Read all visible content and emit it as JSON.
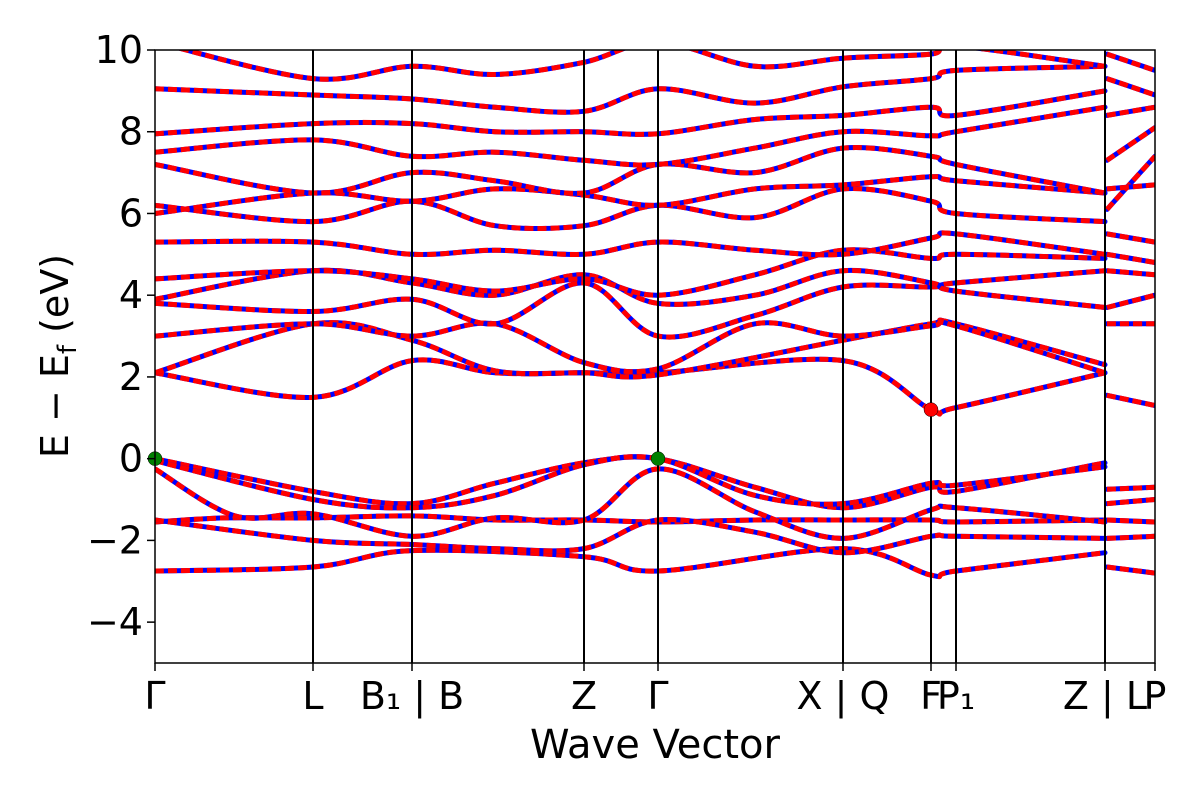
{
  "chart_data": {
    "type": "line",
    "title": "",
    "xlabel": "Wave Vector",
    "ylabel": "E − Ef (eV)",
    "ylabel_main": "E − E",
    "ylabel_sub": "f",
    "ylabel_unit": " (eV)",
    "ylim": [
      -5,
      10
    ],
    "yticks": [
      -4,
      -2,
      0,
      2,
      4,
      6,
      8,
      10
    ],
    "ytick_labels": [
      "−4",
      "−2",
      "0",
      "2",
      "4",
      "6",
      "8",
      "10"
    ],
    "xlim": [
      0,
      1
    ],
    "grid": false,
    "kpoints": [
      {
        "x": 0.0,
        "label": "Γ"
      },
      {
        "x": 0.158,
        "label": "L"
      },
      {
        "x": 0.257,
        "label": "B₁ | B"
      },
      {
        "x": 0.429,
        "label": "Z"
      },
      {
        "x": 0.503,
        "label": "Γ"
      },
      {
        "x": 0.688,
        "label": "X | Q"
      },
      {
        "x": 0.776,
        "label": "F"
      },
      {
        "x": 0.801,
        "label": "P₁"
      },
      {
        "x": 0.95,
        "label": "Z | L"
      },
      {
        "x": 1.0,
        "label": "P"
      }
    ],
    "series_colors": {
      "primary": "#ff0000",
      "overlay": "#0000ff"
    },
    "markers": [
      {
        "x": 0.0,
        "y": 0.0,
        "color": "#008000",
        "role": "valence band maximum"
      },
      {
        "x": 0.503,
        "y": 0.0,
        "color": "#008000",
        "role": "valence band maximum"
      },
      {
        "x": 0.776,
        "y": 1.2,
        "color": "#ff0000",
        "role": "conduction band minimum"
      }
    ],
    "bands": [
      {
        "x": [
          0,
          0.158,
          0.257,
          0.429,
          0.503,
          0.688,
          0.776,
          0.801,
          0.95
        ],
        "y": [
          -2.75,
          -2.65,
          -2.25,
          -2.4,
          -2.75,
          -2.2,
          -2.85,
          -2.75,
          -2.3
        ]
      },
      {
        "x": [
          0,
          0.07,
          0.158,
          0.257,
          0.34,
          0.429,
          0.503,
          0.6,
          0.688,
          0.776,
          0.801,
          0.95
        ],
        "y": [
          -1.55,
          -1.45,
          -1.45,
          -1.4,
          -1.5,
          -1.5,
          -1.55,
          -1.5,
          -1.5,
          -1.5,
          -1.55,
          -1.5
        ]
      },
      {
        "x": [
          0,
          0.158,
          0.257,
          0.34,
          0.429,
          0.503,
          0.6,
          0.688,
          0.776,
          0.801,
          0.95
        ],
        "y": [
          -1.5,
          -2.0,
          -2.1,
          -2.2,
          -2.2,
          -1.5,
          -1.8,
          -2.3,
          -1.9,
          -1.9,
          -1.95
        ]
      },
      {
        "x": [
          0,
          0.08,
          0.158,
          0.257,
          0.34,
          0.429,
          0.503,
          0.6,
          0.688,
          0.776,
          0.801,
          0.95
        ],
        "y": [
          -0.25,
          -1.4,
          -1.35,
          -1.9,
          -1.45,
          -1.5,
          -0.25,
          -1.3,
          -1.95,
          -1.25,
          -1.2,
          -1.55
        ]
      },
      {
        "x": [
          0,
          0.158,
          0.257,
          0.34,
          0.429,
          0.503,
          0.6,
          0.688,
          0.776,
          0.801,
          0.95
        ],
        "y": [
          0.0,
          -0.8,
          -1.1,
          -0.6,
          -0.1,
          0.0,
          -0.7,
          -1.2,
          -0.7,
          -0.8,
          -0.1
        ]
      },
      {
        "x": [
          0,
          0.158,
          0.257,
          0.34,
          0.429,
          0.503,
          0.6,
          0.688,
          0.776,
          0.801,
          0.95
        ],
        "y": [
          -0.05,
          -1.0,
          -1.2,
          -0.9,
          -0.15,
          0.0,
          -0.9,
          -1.1,
          -0.6,
          -0.65,
          -0.2
        ]
      },
      {
        "x": [
          0,
          0.158,
          0.257,
          0.34,
          0.429,
          0.503,
          0.688,
          0.776,
          0.801,
          0.95
        ],
        "y": [
          2.1,
          1.5,
          2.4,
          2.1,
          2.1,
          2.1,
          2.4,
          1.2,
          1.25,
          2.1
        ]
      },
      {
        "x": [
          0,
          0.158,
          0.257,
          0.34,
          0.429,
          0.503,
          0.688,
          0.776,
          0.801,
          0.95
        ],
        "y": [
          2.1,
          3.3,
          2.9,
          2.15,
          2.1,
          2.05,
          2.9,
          3.3,
          3.3,
          2.3
        ]
      },
      {
        "x": [
          0,
          0.158,
          0.257,
          0.34,
          0.429,
          0.503,
          0.6,
          0.688,
          0.776,
          0.801,
          0.95
        ],
        "y": [
          3.0,
          3.3,
          3.0,
          3.3,
          2.35,
          2.2,
          3.3,
          3.0,
          3.25,
          3.25,
          2.1
        ]
      },
      {
        "x": [
          0,
          0.158,
          0.257,
          0.34,
          0.429,
          0.503,
          0.6,
          0.688,
          0.776,
          0.801,
          0.95
        ],
        "y": [
          3.8,
          3.6,
          3.9,
          3.3,
          4.3,
          3.0,
          3.5,
          4.2,
          4.2,
          4.3,
          4.6
        ]
      },
      {
        "x": [
          0,
          0.158,
          0.257,
          0.34,
          0.429,
          0.503,
          0.6,
          0.688,
          0.776,
          0.801,
          0.95
        ],
        "y": [
          3.9,
          4.6,
          4.3,
          4.0,
          4.5,
          3.8,
          4.0,
          4.6,
          4.3,
          4.1,
          3.7
        ]
      },
      {
        "x": [
          0,
          0.158,
          0.257,
          0.34,
          0.429,
          0.503,
          0.6,
          0.688,
          0.776,
          0.801,
          0.95
        ],
        "y": [
          4.4,
          4.6,
          4.4,
          4.1,
          4.4,
          4.0,
          4.5,
          5.1,
          4.9,
          5.0,
          4.9
        ]
      },
      {
        "x": [
          0,
          0.158,
          0.257,
          0.34,
          0.429,
          0.503,
          0.6,
          0.688,
          0.776,
          0.801,
          0.95
        ],
        "y": [
          5.3,
          5.3,
          5.0,
          5.1,
          5.0,
          5.3,
          5.1,
          5.0,
          5.4,
          5.5,
          5.0
        ]
      },
      {
        "x": [
          0,
          0.158,
          0.257,
          0.34,
          0.429,
          0.503,
          0.6,
          0.688,
          0.776,
          0.801,
          0.95
        ],
        "y": [
          6.2,
          5.8,
          6.3,
          5.7,
          5.7,
          6.2,
          5.9,
          6.6,
          6.3,
          6.0,
          5.8
        ]
      },
      {
        "x": [
          0,
          0.158,
          0.257,
          0.34,
          0.429,
          0.503,
          0.6,
          0.688,
          0.776,
          0.801,
          0.95
        ],
        "y": [
          6.0,
          6.5,
          6.3,
          6.6,
          6.45,
          6.2,
          6.6,
          6.7,
          6.9,
          6.8,
          6.5
        ]
      },
      {
        "x": [
          0,
          0.158,
          0.257,
          0.34,
          0.429,
          0.503,
          0.6,
          0.688,
          0.776,
          0.801,
          0.95
        ],
        "y": [
          7.2,
          6.5,
          7.0,
          6.8,
          6.5,
          7.2,
          7.0,
          7.6,
          7.4,
          7.2,
          6.5
        ]
      },
      {
        "x": [
          0,
          0.158,
          0.257,
          0.34,
          0.429,
          0.503,
          0.6,
          0.688,
          0.776,
          0.801,
          0.95
        ],
        "y": [
          7.5,
          7.8,
          7.4,
          7.5,
          7.3,
          7.2,
          7.6,
          8.0,
          7.9,
          8.0,
          8.6
        ]
      },
      {
        "x": [
          0,
          0.158,
          0.257,
          0.34,
          0.429,
          0.503,
          0.6,
          0.688,
          0.776,
          0.801,
          0.95
        ],
        "y": [
          7.95,
          8.2,
          8.2,
          8.0,
          8.0,
          7.95,
          8.3,
          8.4,
          8.6,
          8.4,
          9.0
        ]
      },
      {
        "x": [
          0,
          0.158,
          0.257,
          0.34,
          0.429,
          0.503,
          0.6,
          0.688,
          0.776,
          0.801,
          0.95
        ],
        "y": [
          9.05,
          8.9,
          8.8,
          8.6,
          8.5,
          9.05,
          8.7,
          9.1,
          9.3,
          9.5,
          9.6
        ]
      },
      {
        "x": [
          0,
          0.158,
          0.257,
          0.34,
          0.429,
          0.503,
          0.6,
          0.688,
          0.776,
          0.801,
          0.95
        ],
        "y": [
          10.2,
          9.3,
          9.6,
          9.4,
          9.7,
          10.2,
          9.6,
          9.8,
          9.9,
          10.1,
          9.6
        ]
      }
    ],
    "bands_after_break": [
      {
        "x": [
          0.952,
          1.0
        ],
        "y": [
          -2.65,
          -2.8
        ]
      },
      {
        "x": [
          0.952,
          1.0
        ],
        "y": [
          -1.95,
          -1.9
        ]
      },
      {
        "x": [
          0.952,
          1.0
        ],
        "y": [
          -1.5,
          -1.55
        ]
      },
      {
        "x": [
          0.952,
          1.0
        ],
        "y": [
          -1.1,
          -1.0
        ]
      },
      {
        "x": [
          0.952,
          1.0
        ],
        "y": [
          -0.75,
          -0.7
        ]
      },
      {
        "x": [
          0.952,
          1.0
        ],
        "y": [
          1.55,
          1.3
        ]
      },
      {
        "x": [
          0.952,
          1.0
        ],
        "y": [
          3.3,
          3.3
        ]
      },
      {
        "x": [
          0.952,
          1.0
        ],
        "y": [
          3.7,
          4.0
        ]
      },
      {
        "x": [
          0.952,
          1.0
        ],
        "y": [
          4.6,
          4.5
        ]
      },
      {
        "x": [
          0.952,
          1.0
        ],
        "y": [
          5.0,
          4.8
        ]
      },
      {
        "x": [
          0.952,
          1.0
        ],
        "y": [
          5.5,
          5.3
        ]
      },
      {
        "x": [
          0.952,
          1.0
        ],
        "y": [
          6.1,
          7.4
        ]
      },
      {
        "x": [
          0.952,
          1.0
        ],
        "y": [
          6.6,
          6.7
        ]
      },
      {
        "x": [
          0.952,
          1.0
        ],
        "y": [
          7.3,
          8.1
        ]
      },
      {
        "x": [
          0.952,
          1.0
        ],
        "y": [
          8.4,
          8.6
        ]
      },
      {
        "x": [
          0.952,
          1.0
        ],
        "y": [
          9.3,
          8.9
        ]
      },
      {
        "x": [
          0.952,
          1.0
        ],
        "y": [
          9.9,
          9.5
        ]
      }
    ]
  }
}
